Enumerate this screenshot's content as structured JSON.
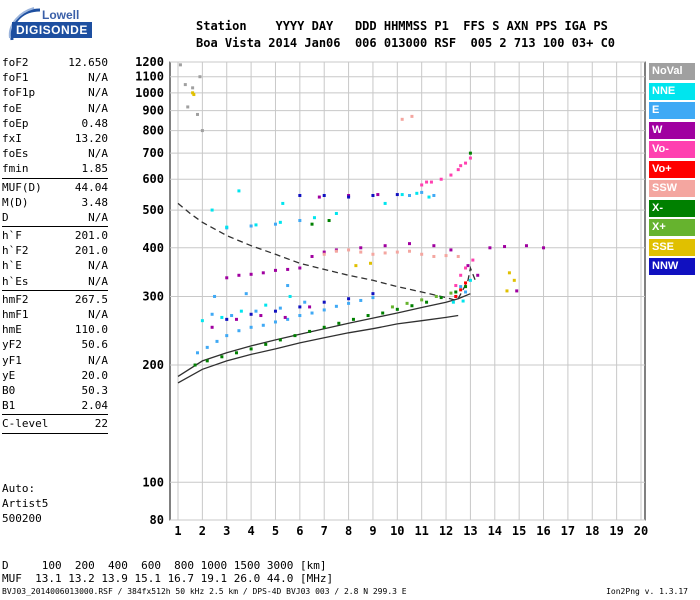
{
  "logo": {
    "line1": "Lowell",
    "line2": "DIGISONDE"
  },
  "header": {
    "line1": "Station    YYYY DAY   DDD HHMMSS P1  FFS S AXN PPS IGA PS",
    "line2": "Boa Vista 2014 Jan06  006 013000 RSF  005 2 713 100 03+ C0"
  },
  "params": [
    {
      "name": "foF2",
      "value": "12.650"
    },
    {
      "name": "foF1",
      "value": "N/A"
    },
    {
      "name": "foF1p",
      "value": "N/A"
    },
    {
      "name": "foE",
      "value": "N/A"
    },
    {
      "name": "foEp",
      "value": "0.48"
    },
    {
      "name": "fxI",
      "value": "13.20"
    },
    {
      "name": "foEs",
      "value": "N/A"
    },
    {
      "name": "fmin",
      "value": "1.85"
    },
    {
      "sep": true
    },
    {
      "name": "MUF(D)",
      "value": "44.04"
    },
    {
      "name": "M(D)",
      "value": "3.48"
    },
    {
      "name": "D",
      "value": "N/A"
    },
    {
      "sep": true
    },
    {
      "name": "h`F",
      "value": "201.0"
    },
    {
      "name": "h`F2",
      "value": "201.0"
    },
    {
      "name": "h`E",
      "value": "N/A"
    },
    {
      "name": "h`Es",
      "value": "N/A"
    },
    {
      "sep": true
    },
    {
      "name": "hmF2",
      "value": "267.5"
    },
    {
      "name": "hmF1",
      "value": "N/A"
    },
    {
      "name": "hmE",
      "value": "110.0"
    },
    {
      "name": "yF2",
      "value": "50.6"
    },
    {
      "name": "yF1",
      "value": "N/A"
    },
    {
      "name": "yE",
      "value": "20.0"
    },
    {
      "name": "B0",
      "value": "50.3"
    },
    {
      "name": "B1",
      "value": "2.04"
    },
    {
      "sep": true
    },
    {
      "name": "C-level",
      "value": "22"
    },
    {
      "sep": true
    }
  ],
  "auto": {
    "line1": "Auto:",
    "line2": "Artist5",
    "line3": "500200"
  },
  "footer": {
    "line1": "D     100  200  400  600  800 1000 1500 3000 [km]",
    "line2": "MUF  13.1 13.2 13.9 15.1 16.7 19.1 26.0 44.0 [MHz]",
    "line3": "BVJ03_2014006013000.RSF / 384fx512h 50 kHz 2.5 km / DPS-4D BVJ03 003 / 2.8 N 299.3 E",
    "version": "Ion2Png v. 1.3.17"
  },
  "legend": [
    {
      "label": "NoVal",
      "color": "#a0a0a0"
    },
    {
      "label": "NNE",
      "color": "#00e5ee"
    },
    {
      "label": "E",
      "color": "#3fa9f5"
    },
    {
      "label": "W",
      "color": "#a000a0"
    },
    {
      "label": "Vo-",
      "color": "#ff40b0"
    },
    {
      "label": "Vo+",
      "color": "#ff0000"
    },
    {
      "label": "SSW",
      "color": "#f4a6a0"
    },
    {
      "label": "X-",
      "color": "#008000"
    },
    {
      "label": "X+",
      "color": "#66b32e"
    },
    {
      "label": "SSE",
      "color": "#e0c000"
    },
    {
      "label": "NNW",
      "color": "#1010c0"
    }
  ],
  "chart_data": {
    "type": "scatter",
    "xlabel": "",
    "ylabel": "",
    "xlim": [
      1,
      20
    ],
    "ylim": [
      80,
      1200
    ],
    "x_ticks": [
      1,
      2,
      3,
      4,
      5,
      6,
      7,
      8,
      9,
      10,
      11,
      12,
      13,
      14,
      15,
      16,
      17,
      18,
      19,
      20
    ],
    "y_ticks": [
      80,
      100,
      200,
      300,
      400,
      500,
      600,
      700,
      800,
      900,
      1000,
      1100,
      1200
    ],
    "y_scale": "log",
    "grid": true,
    "legend_position": "right",
    "series": [
      {
        "name": "E",
        "color": "#3fa9f5",
        "points": [
          [
            1.8,
            215
          ],
          [
            2.2,
            222
          ],
          [
            2.6,
            230
          ],
          [
            3.0,
            238
          ],
          [
            3.5,
            245
          ],
          [
            4.0,
            250
          ],
          [
            4.5,
            253
          ],
          [
            5.0,
            258
          ],
          [
            5.5,
            262
          ],
          [
            6.0,
            268
          ],
          [
            6.5,
            272
          ],
          [
            7.0,
            277
          ],
          [
            7.5,
            283
          ],
          [
            8.0,
            288
          ],
          [
            8.5,
            293
          ],
          [
            9.0,
            298
          ],
          [
            2.4,
            270
          ],
          [
            3.2,
            268
          ],
          [
            4.2,
            275
          ],
          [
            5.2,
            280
          ],
          [
            6.2,
            290
          ],
          [
            3.0,
            450
          ],
          [
            4.0,
            455
          ],
          [
            5.0,
            460
          ],
          [
            6.0,
            470
          ],
          [
            2.5,
            300
          ],
          [
            3.8,
            305
          ],
          [
            5.5,
            320
          ],
          [
            10.5,
            545
          ],
          [
            11.0,
            555
          ],
          [
            11.5,
            545
          ],
          [
            12.4,
            300
          ],
          [
            12.6,
            318
          ],
          [
            12.8,
            308
          ]
        ]
      },
      {
        "name": "NNE",
        "color": "#00e5ee",
        "points": [
          [
            2.0,
            260
          ],
          [
            2.8,
            265
          ],
          [
            3.6,
            275
          ],
          [
            4.6,
            285
          ],
          [
            5.6,
            300
          ],
          [
            3.0,
            452
          ],
          [
            4.2,
            458
          ],
          [
            5.2,
            465
          ],
          [
            6.6,
            478
          ],
          [
            7.5,
            490
          ],
          [
            9.5,
            520
          ],
          [
            10.2,
            548
          ],
          [
            10.8,
            552
          ],
          [
            11.3,
            540
          ],
          [
            12.3,
            290
          ],
          [
            12.7,
            292
          ],
          [
            13.0,
            330
          ],
          [
            2.4,
            500
          ],
          [
            3.5,
            560
          ],
          [
            5.3,
            520
          ]
        ]
      },
      {
        "name": "W",
        "color": "#a000a0",
        "points": [
          [
            3.0,
            335
          ],
          [
            3.5,
            340
          ],
          [
            4.0,
            342
          ],
          [
            4.5,
            345
          ],
          [
            5.0,
            350
          ],
          [
            5.5,
            352
          ],
          [
            6.0,
            355
          ],
          [
            6.5,
            380
          ],
          [
            7.0,
            390
          ],
          [
            7.5,
            395
          ],
          [
            8.5,
            400
          ],
          [
            9.5,
            405
          ],
          [
            10.5,
            410
          ],
          [
            11.5,
            405
          ],
          [
            12.2,
            395
          ],
          [
            2.4,
            250
          ],
          [
            3.4,
            262
          ],
          [
            4.4,
            268
          ],
          [
            5.4,
            265
          ],
          [
            6.4,
            282
          ],
          [
            6.8,
            540
          ],
          [
            8.0,
            545
          ],
          [
            9.2,
            548
          ],
          [
            13.8,
            400
          ],
          [
            14.4,
            403
          ],
          [
            15.3,
            405
          ],
          [
            16.0,
            400
          ],
          [
            12.9,
            360
          ],
          [
            13.3,
            340
          ],
          [
            14.9,
            310
          ]
        ]
      },
      {
        "name": "Vo-",
        "color": "#ff40b0",
        "points": [
          [
            11.0,
            580
          ],
          [
            11.4,
            590
          ],
          [
            11.8,
            600
          ],
          [
            12.2,
            615
          ],
          [
            12.5,
            635
          ],
          [
            12.8,
            660
          ],
          [
            13.0,
            680
          ],
          [
            11.2,
            590
          ],
          [
            12.6,
            650
          ],
          [
            12.4,
            320
          ],
          [
            12.6,
            340
          ],
          [
            12.8,
            355
          ],
          [
            13.1,
            372
          ]
        ]
      },
      {
        "name": "Vo+",
        "color": "#ff0000",
        "points": [
          [
            12.4,
            300
          ],
          [
            12.6,
            312
          ],
          [
            12.8,
            325
          ]
        ]
      },
      {
        "name": "SSW",
        "color": "#f4a6a0",
        "points": [
          [
            7.0,
            385
          ],
          [
            7.5,
            392
          ],
          [
            8.0,
            395
          ],
          [
            8.5,
            390
          ],
          [
            9.0,
            385
          ],
          [
            9.5,
            388
          ],
          [
            10.0,
            390
          ],
          [
            10.5,
            392
          ],
          [
            11.0,
            385
          ],
          [
            11.5,
            380
          ],
          [
            12.0,
            382
          ],
          [
            12.5,
            380
          ],
          [
            10.2,
            855
          ],
          [
            10.6,
            870
          ]
        ]
      },
      {
        "name": "X-",
        "color": "#008000",
        "points": [
          [
            1.7,
            200
          ],
          [
            2.2,
            205
          ],
          [
            2.8,
            210
          ],
          [
            3.4,
            215
          ],
          [
            4.0,
            220
          ],
          [
            4.6,
            226
          ],
          [
            5.2,
            232
          ],
          [
            5.8,
            238
          ],
          [
            6.4,
            244
          ],
          [
            7.0,
            250
          ],
          [
            7.6,
            256
          ],
          [
            8.2,
            262
          ],
          [
            8.8,
            268
          ],
          [
            9.4,
            272
          ],
          [
            10.0,
            278
          ],
          [
            10.6,
            284
          ],
          [
            11.2,
            290
          ],
          [
            11.8,
            298
          ],
          [
            12.4,
            308
          ],
          [
            12.8,
            318
          ],
          [
            13.0,
            700
          ],
          [
            6.5,
            460
          ],
          [
            7.2,
            470
          ]
        ]
      },
      {
        "name": "X+",
        "color": "#66b32e",
        "points": [
          [
            9.8,
            282
          ],
          [
            10.4,
            288
          ],
          [
            11.0,
            294
          ],
          [
            11.6,
            300
          ],
          [
            12.2,
            306
          ]
        ]
      },
      {
        "name": "SSE",
        "color": "#e0c000",
        "points": [
          [
            1.6,
            1000
          ],
          [
            1.65,
            990
          ],
          [
            8.3,
            360
          ],
          [
            8.9,
            365
          ],
          [
            14.5,
            310
          ],
          [
            14.8,
            330
          ],
          [
            14.6,
            345
          ]
        ]
      },
      {
        "name": "NNW",
        "color": "#1010c0",
        "points": [
          [
            3.0,
            262
          ],
          [
            4.0,
            270
          ],
          [
            5.0,
            275
          ],
          [
            6.0,
            282
          ],
          [
            7.0,
            290
          ],
          [
            8.0,
            296
          ],
          [
            9.0,
            305
          ],
          [
            6.0,
            545
          ],
          [
            7.0,
            545
          ],
          [
            8.0,
            540
          ],
          [
            9.0,
            545
          ],
          [
            10.0,
            548
          ]
        ]
      },
      {
        "name": "NoVal",
        "color": "#a0a0a0",
        "points": [
          [
            1.1,
            1180
          ],
          [
            1.3,
            1050
          ],
          [
            1.6,
            1030
          ],
          [
            1.9,
            1100
          ],
          [
            2.0,
            800
          ],
          [
            1.4,
            920
          ],
          [
            1.8,
            880
          ]
        ]
      }
    ],
    "curves": [
      {
        "style": "dashed",
        "color": "#303030",
        "points": [
          [
            1.0,
            520
          ],
          [
            1.5,
            490
          ],
          [
            2.0,
            465
          ],
          [
            3.0,
            430
          ],
          [
            4.0,
            405
          ],
          [
            5.0,
            385
          ],
          [
            6.0,
            365
          ],
          [
            7.0,
            352
          ],
          [
            8.0,
            340
          ],
          [
            9.0,
            330
          ],
          [
            10.0,
            318
          ],
          [
            11.0,
            308
          ],
          [
            12.0,
            298
          ],
          [
            12.5,
            292
          ]
        ]
      },
      {
        "style": "solid",
        "color": "#303030",
        "points": [
          [
            1.0,
            180
          ],
          [
            2.0,
            195
          ],
          [
            3.0,
            205
          ],
          [
            4.0,
            213
          ],
          [
            5.0,
            220
          ],
          [
            6.0,
            228
          ],
          [
            7.0,
            235
          ],
          [
            8.0,
            242
          ],
          [
            9.0,
            248
          ],
          [
            10.0,
            255
          ],
          [
            11.0,
            260
          ],
          [
            12.0,
            265
          ],
          [
            12.5,
            268
          ]
        ]
      },
      {
        "style": "solid",
        "color": "#303030",
        "points": [
          [
            1.0,
            187
          ],
          [
            2.0,
            205
          ],
          [
            3.0,
            215
          ],
          [
            4.0,
            224
          ],
          [
            5.0,
            232
          ],
          [
            6.0,
            240
          ],
          [
            7.0,
            248
          ],
          [
            8.0,
            256
          ],
          [
            9.0,
            264
          ],
          [
            10.0,
            272
          ],
          [
            11.0,
            281
          ],
          [
            12.0,
            290
          ],
          [
            12.5,
            296
          ],
          [
            13.0,
            305
          ]
        ]
      },
      {
        "style": "dashed",
        "color": "#303030",
        "points": [
          [
            12.5,
            296
          ],
          [
            12.9,
            330
          ],
          [
            13.0,
            355
          ],
          [
            13.2,
            330
          ]
        ]
      }
    ]
  }
}
